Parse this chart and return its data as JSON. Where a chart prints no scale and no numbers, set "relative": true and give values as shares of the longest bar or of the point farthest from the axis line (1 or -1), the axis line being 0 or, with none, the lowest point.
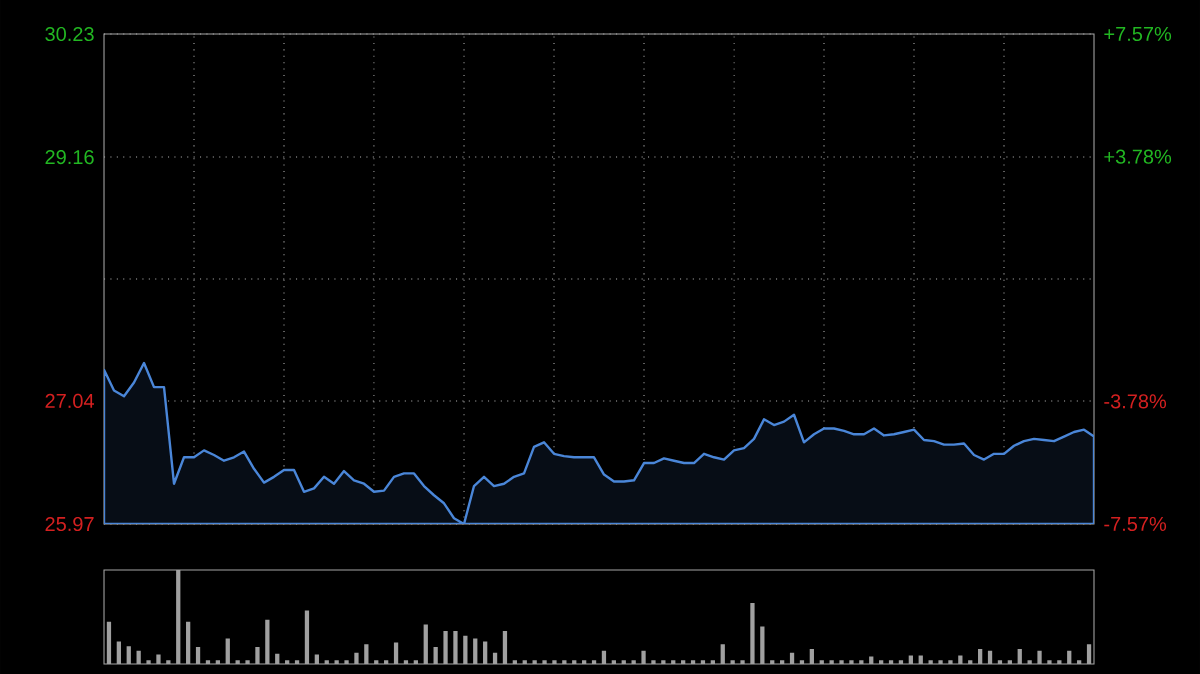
{
  "chart_data": [
    {
      "type": "area",
      "grid": true,
      "categories": [
        null,
        null,
        null,
        null,
        null,
        null,
        null,
        null,
        null,
        null,
        null,
        null,
        null,
        null,
        null,
        null,
        null,
        null,
        null,
        null,
        null,
        null,
        null,
        null,
        null,
        null,
        null,
        null,
        null,
        null,
        null,
        null,
        null,
        null,
        null,
        null,
        null,
        null,
        null,
        null,
        null,
        null,
        null,
        null,
        null,
        null,
        null,
        null,
        null,
        null,
        null,
        null,
        null,
        null,
        null,
        null,
        null,
        null,
        null,
        null,
        null,
        null,
        null,
        null,
        null,
        null,
        null,
        null,
        null,
        null,
        null,
        null,
        null,
        null,
        null,
        null,
        null,
        null,
        null,
        null,
        null,
        null,
        null,
        null,
        null,
        null,
        null,
        null,
        null,
        null,
        null,
        null,
        null,
        null,
        null,
        null,
        null,
        null,
        null,
        null
      ],
      "series": [
        {
          "color": "#4a86d8",
          "values": [
            27.31,
            27.13,
            27.08,
            27.2,
            27.37,
            27.16,
            27.16,
            26.32,
            26.55,
            26.55,
            26.61,
            26.57,
            26.52,
            26.55,
            26.6,
            26.45,
            26.33,
            26.38,
            26.44,
            26.44,
            26.25,
            26.28,
            26.38,
            26.32,
            26.43,
            26.35,
            26.32,
            26.25,
            26.26,
            26.38,
            26.41,
            26.41,
            26.3,
            26.22,
            26.15,
            26.02,
            25.97,
            26.3,
            26.38,
            26.3,
            26.32,
            26.38,
            26.41,
            26.64,
            26.68,
            26.58,
            26.56,
            26.55,
            26.55,
            26.55,
            26.4,
            26.34,
            26.34,
            26.35,
            26.5,
            26.5,
            26.54,
            26.52,
            26.5,
            26.5,
            26.58,
            26.55,
            26.53,
            26.61,
            26.63,
            26.71,
            26.88,
            26.83,
            26.86,
            26.92,
            26.68,
            26.75,
            26.8,
            26.8,
            26.78,
            26.75,
            26.75,
            26.8,
            26.74,
            26.75,
            26.77,
            26.79,
            26.7,
            26.69,
            26.66,
            26.66,
            26.67,
            26.57,
            26.53,
            26.58,
            26.58,
            26.65,
            26.69,
            26.71,
            26.7,
            26.69,
            26.73,
            26.77,
            26.79,
            26.73
          ]
        }
      ],
      "ylim": [
        25.97,
        30.23
      ],
      "yticks": [
        25.97,
        27.04,
        {
          "value": 28.1,
          "label": null
        },
        29.16,
        30.23
      ],
      "y2lim": [
        -7.57,
        7.57
      ],
      "y2ticks": [
        {
          "value": -7.57,
          "label": "-7.57%"
        },
        {
          "value": -3.78,
          "label": "-3.78%"
        },
        {
          "value": 3.78,
          "label": "+3.78%"
        },
        {
          "value": 7.57,
          "label": "+7.57%"
        }
      ]
    },
    {
      "type": "bar",
      "relative": true,
      "color": "#a0a0a0",
      "categories": [
        null,
        null,
        null,
        null,
        null,
        null,
        null,
        null,
        null,
        null,
        null,
        null,
        null,
        null,
        null,
        null,
        null,
        null,
        null,
        null,
        null,
        null,
        null,
        null,
        null,
        null,
        null,
        null,
        null,
        null,
        null,
        null,
        null,
        null,
        null,
        null,
        null,
        null,
        null,
        null,
        null,
        null,
        null,
        null,
        null,
        null,
        null,
        null,
        null,
        null,
        null,
        null,
        null,
        null,
        null,
        null,
        null,
        null,
        null,
        null,
        null,
        null,
        null,
        null,
        null,
        null,
        null,
        null,
        null,
        null,
        null,
        null,
        null,
        null,
        null,
        null,
        null,
        null,
        null,
        null,
        null,
        null,
        null,
        null,
        null,
        null,
        null,
        null,
        null,
        null,
        null,
        null,
        null,
        null,
        null,
        null,
        null,
        null,
        null,
        null
      ],
      "values": [
        0.45,
        0.24,
        0.19,
        0.14,
        0.04,
        0.1,
        0.04,
        1.0,
        0.45,
        0.18,
        0.04,
        0.04,
        0.27,
        0.04,
        0.04,
        0.18,
        0.47,
        0.11,
        0.04,
        0.04,
        0.57,
        0.1,
        0.04,
        0.04,
        0.04,
        0.12,
        0.21,
        0.04,
        0.04,
        0.23,
        0.04,
        0.04,
        0.42,
        0.18,
        0.35,
        0.35,
        0.3,
        0.27,
        0.24,
        0.12,
        0.35,
        0.04,
        0.04,
        0.04,
        0.04,
        0.04,
        0.04,
        0.04,
        0.04,
        0.04,
        0.14,
        0.04,
        0.04,
        0.04,
        0.14,
        0.04,
        0.04,
        0.04,
        0.04,
        0.04,
        0.04,
        0.04,
        0.21,
        0.04,
        0.04,
        0.65,
        0.4,
        0.04,
        0.04,
        0.12,
        0.04,
        0.16,
        0.04,
        0.04,
        0.04,
        0.04,
        0.04,
        0.08,
        0.04,
        0.04,
        0.04,
        0.09,
        0.09,
        0.04,
        0.04,
        0.04,
        0.09,
        0.04,
        0.16,
        0.14,
        0.04,
        0.04,
        0.16,
        0.04,
        0.14,
        0.04,
        0.04,
        0.14,
        0.04,
        0.21
      ]
    }
  ]
}
